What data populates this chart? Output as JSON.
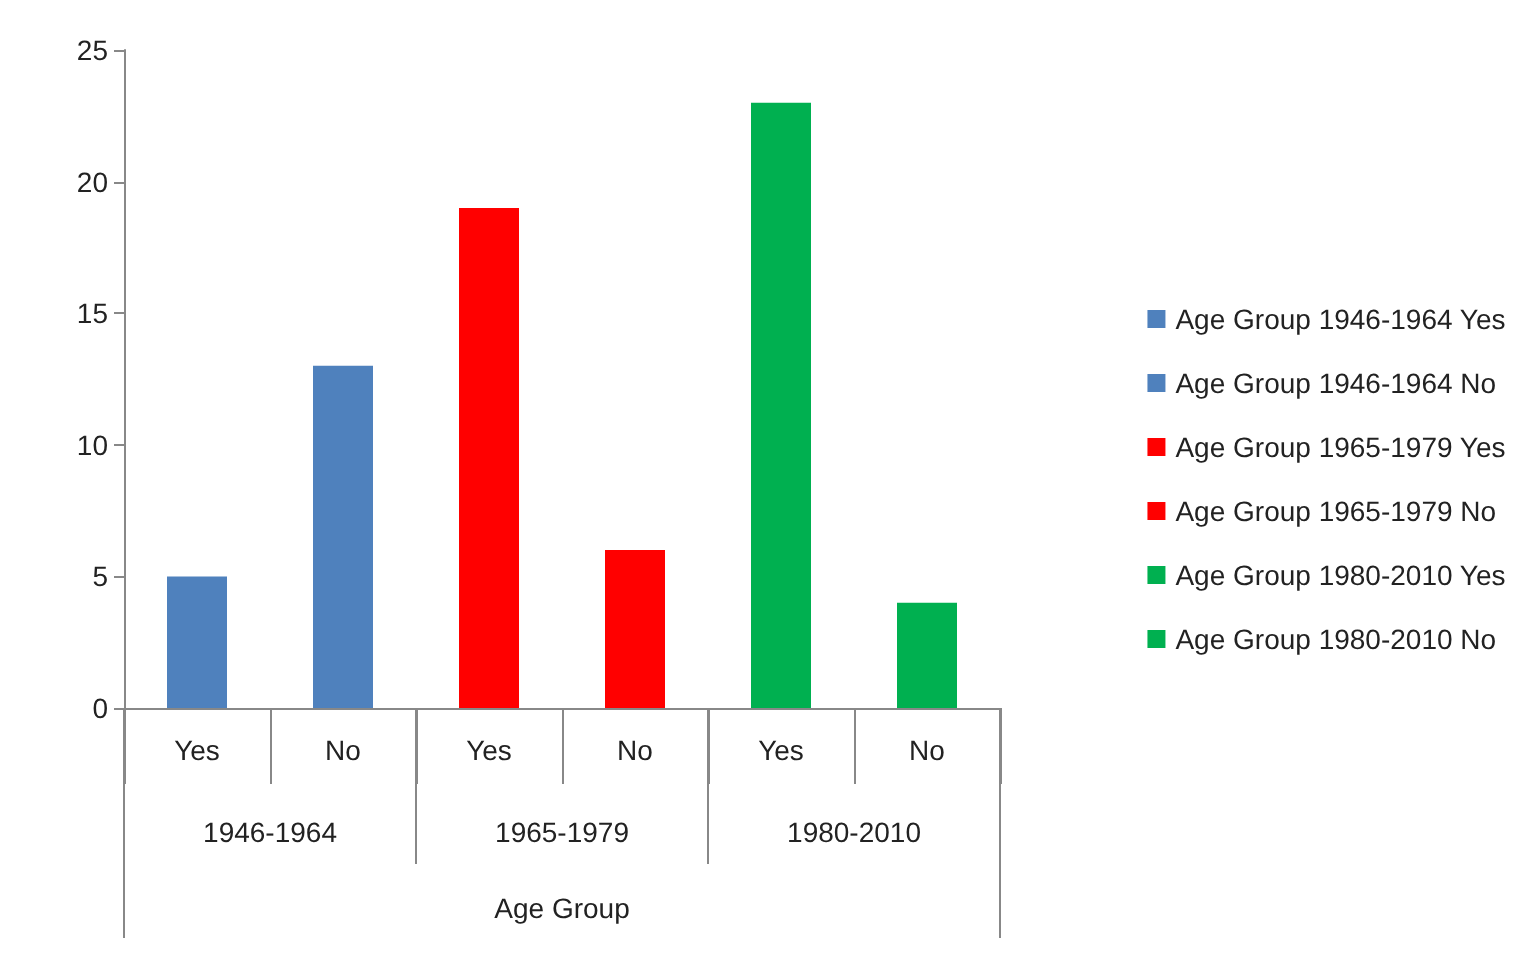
{
  "chart_data": {
    "type": "bar",
    "categories": [
      "Yes",
      "No",
      "Yes",
      "No",
      "Yes",
      "No"
    ],
    "xlabel": "Age Group",
    "annotations": [
      "1946-1964",
      "1965-1979",
      "1980-2010"
    ],
    "series": [
      {
        "name": "Age Group 1946-1964 Yes",
        "color": "#4f81bd",
        "values": [
          5,
          null,
          null,
          null,
          null,
          null
        ]
      },
      {
        "name": "Age Group 1946-1964 No",
        "color": "#4f81bd",
        "values": [
          null,
          13,
          null,
          null,
          null,
          null
        ]
      },
      {
        "name": "Age Group 1965-1979 Yes",
        "color": "#ff0000",
        "values": [
          null,
          null,
          19,
          null,
          null,
          null
        ]
      },
      {
        "name": "Age Group 1965-1979 No",
        "color": "#ff0000",
        "values": [
          null,
          null,
          null,
          6,
          null,
          null
        ]
      },
      {
        "name": "Age Group 1980-2010 Yes",
        "color": "#00b050",
        "values": [
          null,
          null,
          null,
          null,
          23,
          null
        ]
      },
      {
        "name": "Age Group 1980-2010 No",
        "color": "#00b050",
        "values": [
          null,
          null,
          null,
          null,
          null,
          4
        ]
      }
    ],
    "ylim": [
      0,
      25
    ],
    "yticks": [
      0,
      5,
      10,
      15,
      20,
      25
    ],
    "grid": false,
    "legend": "right"
  }
}
